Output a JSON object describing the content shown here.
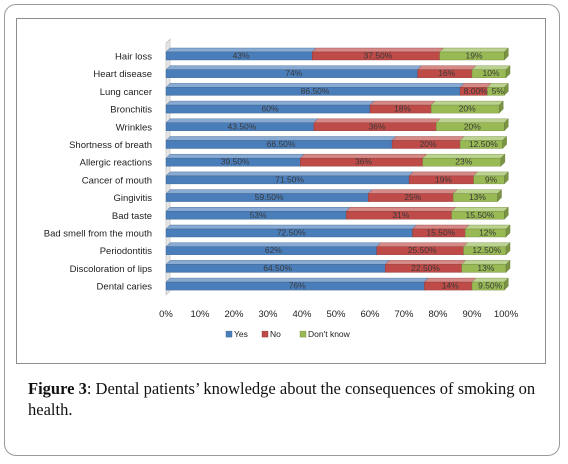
{
  "caption": {
    "label": "Figure 3",
    "text": ": Dental patients’ knowledge about the consequences of smoking on health."
  },
  "colors": {
    "yes": "#4a7ebb",
    "no": "#be4b48",
    "dont_know": "#98b954"
  },
  "chart_data": {
    "type": "bar",
    "orientation": "horizontal",
    "stacked": true,
    "percent": true,
    "categories": [
      "Hair loss",
      "Heart disease",
      "Lung cancer",
      "Bronchitis",
      "Wrinkles",
      "Shortness of breath",
      "Allergic reactions",
      "Cancer of mouth",
      "Gingivitis",
      "Bad taste",
      "Bad smell from the mouth",
      "Periodontitis",
      "Discoloration of lips",
      "Dental caries"
    ],
    "series": [
      {
        "name": "Yes",
        "values": [
          43,
          74,
          86.5,
          60,
          43.5,
          66.5,
          39.5,
          71.5,
          59.5,
          53,
          72.5,
          62,
          64.5,
          76
        ],
        "labels": [
          "43%",
          "74%",
          "86.50%",
          "60%",
          "43.50%",
          "66.50%",
          "39.50%",
          "71.50%",
          "59.50%",
          "53%",
          "72.50%",
          "62%",
          "64.50%",
          "76%"
        ]
      },
      {
        "name": "No",
        "values": [
          37.5,
          16,
          8,
          18,
          36,
          20,
          36,
          19,
          25,
          31,
          15.5,
          25.5,
          22.5,
          14
        ],
        "labels": [
          "37.50%",
          "16%",
          "8.00%",
          "18%",
          "36%",
          "20%",
          "36%",
          "19%",
          "25%",
          "31%",
          "15.50%",
          "25.50%",
          "22.50%",
          "14%"
        ]
      },
      {
        "name": "Don't know",
        "values": [
          19,
          10,
          5,
          20,
          20,
          12.5,
          23,
          9,
          13,
          15.5,
          12,
          12.5,
          13,
          9.5
        ],
        "labels": [
          "19%",
          "10%",
          "5%",
          "20%",
          "20%",
          "12.50%",
          "23%",
          "9%",
          "13%",
          "15.50%",
          "12%",
          "12.50%",
          "13%",
          "9.50%"
        ]
      }
    ],
    "x_ticks": [
      "0%",
      "10%",
      "20%",
      "30%",
      "40%",
      "50%",
      "60%",
      "70%",
      "80%",
      "90%",
      "100%"
    ],
    "xlim": [
      0,
      100
    ],
    "legend_position": "bottom",
    "grid": false,
    "style": "3d-bars"
  }
}
